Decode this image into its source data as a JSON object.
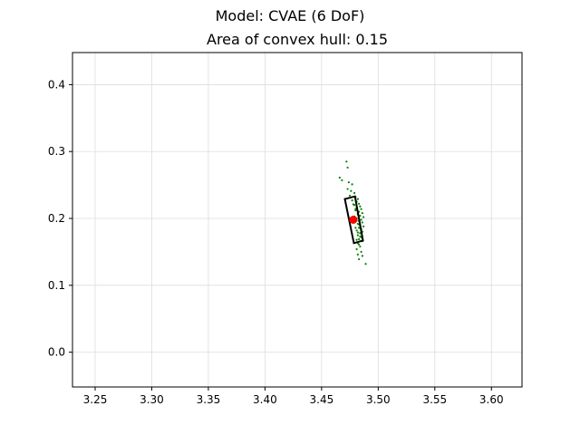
{
  "chart_data": {
    "type": "scatter",
    "suptitle": "Model: CVAE (6 DoF)",
    "title": "Area of convex hull: 0.15",
    "xlabel": "",
    "ylabel": "",
    "xlim": [
      3.23,
      3.627
    ],
    "ylim": [
      -0.052,
      0.448
    ],
    "xticks": [
      "3.25",
      "3.30",
      "3.35",
      "3.40",
      "3.45",
      "3.50",
      "3.55",
      "3.60"
    ],
    "yticks": [
      "0.0",
      "0.1",
      "0.2",
      "0.3",
      "0.4"
    ],
    "grid": true,
    "colors": {
      "samples": "#008000",
      "mean": "#ff0000",
      "hull": "#000000",
      "grid": "#dddddd"
    },
    "samples": [
      {
        "x": 3.472,
        "y": 0.285
      },
      {
        "x": 3.473,
        "y": 0.276
      },
      {
        "x": 3.466,
        "y": 0.261
      },
      {
        "x": 3.468,
        "y": 0.257
      },
      {
        "x": 3.474,
        "y": 0.254
      },
      {
        "x": 3.477,
        "y": 0.251
      },
      {
        "x": 3.473,
        "y": 0.244
      },
      {
        "x": 3.476,
        "y": 0.241
      },
      {
        "x": 3.479,
        "y": 0.238
      },
      {
        "x": 3.475,
        "y": 0.234
      },
      {
        "x": 3.48,
        "y": 0.232
      },
      {
        "x": 3.482,
        "y": 0.229
      },
      {
        "x": 3.477,
        "y": 0.227
      },
      {
        "x": 3.481,
        "y": 0.225
      },
      {
        "x": 3.483,
        "y": 0.222
      },
      {
        "x": 3.479,
        "y": 0.22
      },
      {
        "x": 3.484,
        "y": 0.218
      },
      {
        "x": 3.481,
        "y": 0.216
      },
      {
        "x": 3.485,
        "y": 0.214
      },
      {
        "x": 3.48,
        "y": 0.212
      },
      {
        "x": 3.483,
        "y": 0.21
      },
      {
        "x": 3.486,
        "y": 0.208
      },
      {
        "x": 3.482,
        "y": 0.206
      },
      {
        "x": 3.484,
        "y": 0.204
      },
      {
        "x": 3.487,
        "y": 0.202
      },
      {
        "x": 3.481,
        "y": 0.2
      },
      {
        "x": 3.485,
        "y": 0.198
      },
      {
        "x": 3.483,
        "y": 0.196
      },
      {
        "x": 3.486,
        "y": 0.194
      },
      {
        "x": 3.482,
        "y": 0.192
      },
      {
        "x": 3.484,
        "y": 0.19
      },
      {
        "x": 3.487,
        "y": 0.188
      },
      {
        "x": 3.483,
        "y": 0.186
      },
      {
        "x": 3.485,
        "y": 0.184
      },
      {
        "x": 3.481,
        "y": 0.182
      },
      {
        "x": 3.486,
        "y": 0.18
      },
      {
        "x": 3.484,
        "y": 0.178
      },
      {
        "x": 3.482,
        "y": 0.175
      },
      {
        "x": 3.485,
        "y": 0.172
      },
      {
        "x": 3.483,
        "y": 0.169
      },
      {
        "x": 3.486,
        "y": 0.166
      },
      {
        "x": 3.482,
        "y": 0.163
      },
      {
        "x": 3.484,
        "y": 0.158
      },
      {
        "x": 3.481,
        "y": 0.154
      },
      {
        "x": 3.485,
        "y": 0.15
      },
      {
        "x": 3.482,
        "y": 0.146
      },
      {
        "x": 3.486,
        "y": 0.144
      },
      {
        "x": 3.483,
        "y": 0.139
      },
      {
        "x": 3.489,
        "y": 0.132
      },
      {
        "x": 3.478,
        "y": 0.221
      },
      {
        "x": 3.48,
        "y": 0.214
      },
      {
        "x": 3.482,
        "y": 0.207
      },
      {
        "x": 3.479,
        "y": 0.203
      },
      {
        "x": 3.481,
        "y": 0.197
      },
      {
        "x": 3.483,
        "y": 0.191
      },
      {
        "x": 3.48,
        "y": 0.186
      },
      {
        "x": 3.482,
        "y": 0.179
      },
      {
        "x": 3.484,
        "y": 0.173
      },
      {
        "x": 3.481,
        "y": 0.168
      },
      {
        "x": 3.483,
        "y": 0.161
      }
    ],
    "mean_point": {
      "x": 3.478,
      "y": 0.198
    },
    "hull": [
      {
        "x": 3.4705,
        "y": 0.229
      },
      {
        "x": 3.4795,
        "y": 0.233
      },
      {
        "x": 3.4865,
        "y": 0.167
      },
      {
        "x": 3.4785,
        "y": 0.163
      }
    ]
  }
}
